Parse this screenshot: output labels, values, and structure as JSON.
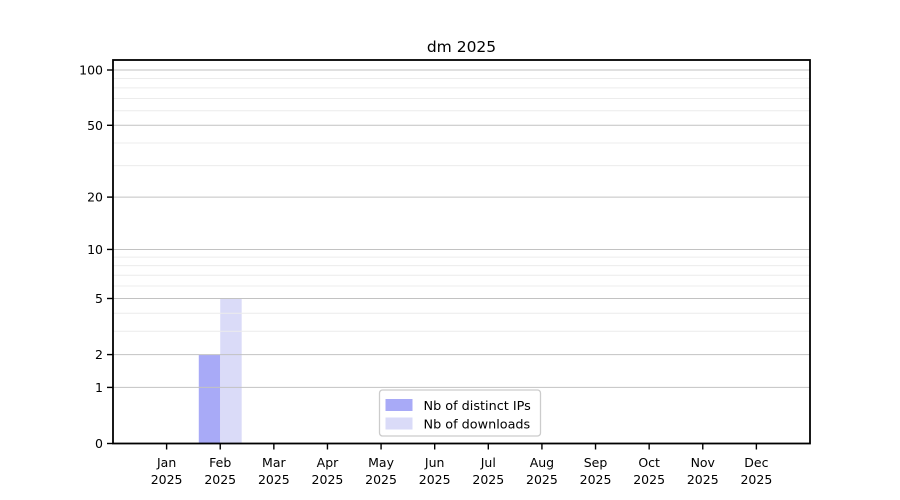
{
  "title": "dm 2025",
  "chart_data": {
    "type": "bar",
    "title": "dm 2025",
    "months": [
      "Jan",
      "Feb",
      "Mar",
      "Apr",
      "May",
      "Jun",
      "Jul",
      "Aug",
      "Sep",
      "Oct",
      "Nov",
      "Dec"
    ],
    "year_label": "2025",
    "categories": [
      "Jan 2025",
      "Feb 2025",
      "Mar 2025",
      "Apr 2025",
      "May 2025",
      "Jun 2025",
      "Jul 2025",
      "Aug 2025",
      "Sep 2025",
      "Oct 2025",
      "Nov 2025",
      "Dec 2025"
    ],
    "series": [
      {
        "name": "Nb of distinct IPs",
        "color": "#a8aaf7",
        "values": [
          0,
          2,
          0,
          0,
          0,
          0,
          0,
          0,
          0,
          0,
          0,
          0
        ]
      },
      {
        "name": "Nb of downloads",
        "color": "#dadbf8",
        "values": [
          0,
          5,
          0,
          0,
          0,
          0,
          0,
          0,
          0,
          0,
          0,
          0
        ]
      }
    ],
    "yscale": "log1p",
    "ylim": [
      0,
      100
    ],
    "y_major_ticks": [
      0,
      1,
      2,
      5,
      10,
      20,
      50,
      100
    ],
    "y_minor_ticks": [
      3,
      4,
      6,
      7,
      8,
      9,
      30,
      40,
      60,
      70,
      80,
      90
    ],
    "grid": true,
    "legend_position": "bottom-center",
    "colors": {
      "spine": "#000000",
      "major_grid": "#c2c2c2",
      "minor_grid": "#ececec",
      "legend_border": "#cccccc",
      "legend_bg": "#ffffff",
      "text": "#000000"
    }
  }
}
